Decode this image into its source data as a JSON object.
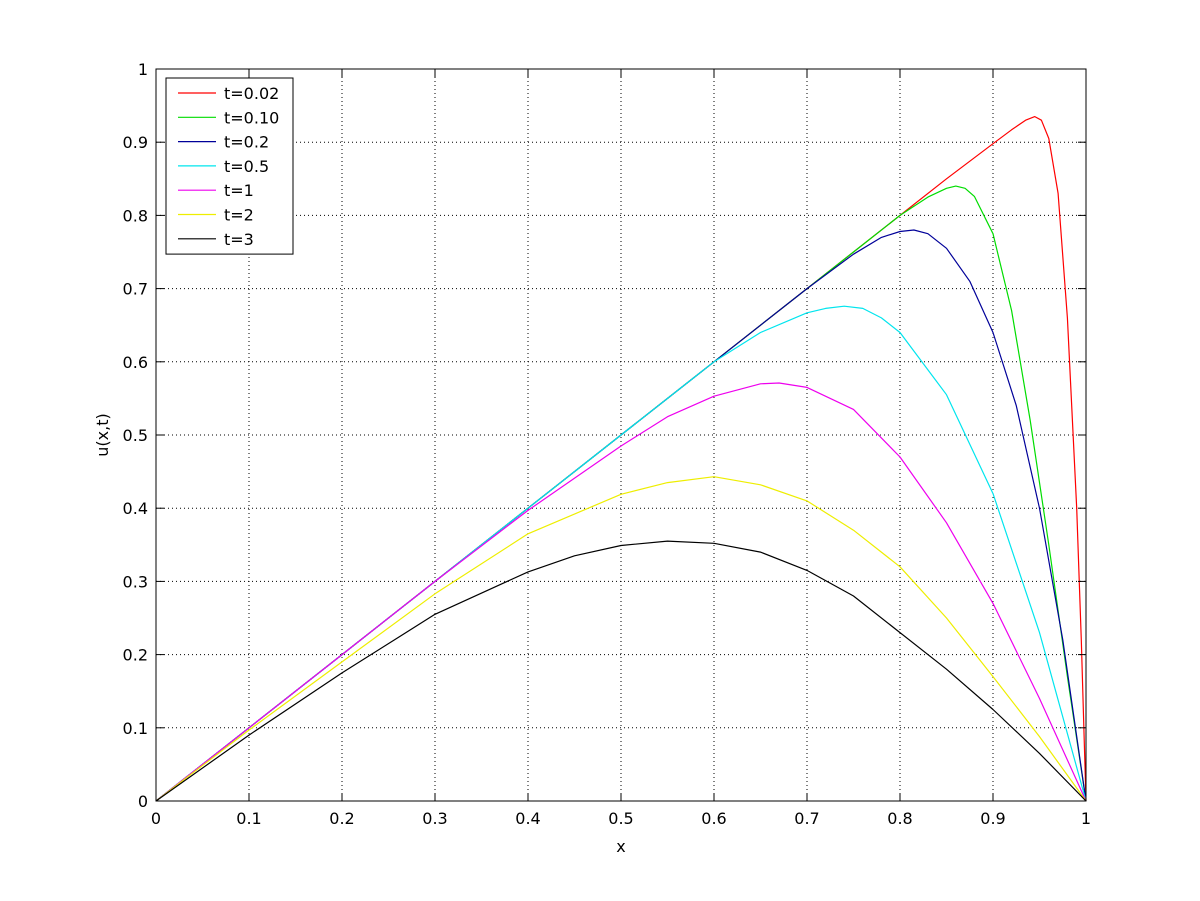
{
  "chart_data": {
    "type": "line",
    "title": "",
    "xlabel": "x",
    "ylabel": "u(x,t)",
    "xlim": [
      0,
      1
    ],
    "ylim": [
      0,
      1
    ],
    "grid": true,
    "legend_position": "top-left",
    "x_ticks": [
      "0",
      "0.1",
      "0.2",
      "0.3",
      "0.4",
      "0.5",
      "0.6",
      "0.7",
      "0.8",
      "0.9",
      "1"
    ],
    "y_ticks": [
      "0",
      "0.1",
      "0.2",
      "0.3",
      "0.4",
      "0.5",
      "0.6",
      "0.7",
      "0.8",
      "0.9",
      "1"
    ],
    "series": [
      {
        "name": "t=0.02",
        "color": "#ff0000",
        "x": [
          0,
          0.1,
          0.2,
          0.3,
          0.4,
          0.5,
          0.6,
          0.7,
          0.8,
          0.85,
          0.9,
          0.92,
          0.935,
          0.945,
          0.952,
          0.96,
          0.97,
          0.98,
          0.99,
          0.995,
          1.0
        ],
        "y": [
          0,
          0.1,
          0.2,
          0.3,
          0.4,
          0.5,
          0.6,
          0.7,
          0.8,
          0.85,
          0.898,
          0.917,
          0.93,
          0.935,
          0.93,
          0.905,
          0.83,
          0.66,
          0.4,
          0.22,
          0
        ]
      },
      {
        "name": "t=0.10",
        "color": "#00dd00",
        "x": [
          0,
          0.1,
          0.2,
          0.3,
          0.4,
          0.5,
          0.6,
          0.7,
          0.75,
          0.8,
          0.83,
          0.85,
          0.86,
          0.87,
          0.88,
          0.9,
          0.92,
          0.94,
          0.96,
          0.98,
          1.0
        ],
        "y": [
          0,
          0.1,
          0.2,
          0.3,
          0.4,
          0.5,
          0.6,
          0.7,
          0.75,
          0.8,
          0.825,
          0.837,
          0.84,
          0.837,
          0.826,
          0.775,
          0.67,
          0.52,
          0.35,
          0.17,
          0
        ]
      },
      {
        "name": "t=0.2",
        "color": "#000099",
        "x": [
          0,
          0.1,
          0.2,
          0.3,
          0.4,
          0.5,
          0.6,
          0.7,
          0.75,
          0.78,
          0.8,
          0.815,
          0.83,
          0.85,
          0.875,
          0.9,
          0.925,
          0.95,
          0.975,
          1.0
        ],
        "y": [
          0,
          0.1,
          0.2,
          0.3,
          0.4,
          0.5,
          0.6,
          0.7,
          0.747,
          0.77,
          0.778,
          0.78,
          0.775,
          0.755,
          0.71,
          0.64,
          0.54,
          0.4,
          0.22,
          0
        ]
      },
      {
        "name": "t=0.5",
        "color": "#00e5ee",
        "x": [
          0,
          0.1,
          0.2,
          0.3,
          0.4,
          0.5,
          0.6,
          0.65,
          0.7,
          0.72,
          0.74,
          0.76,
          0.78,
          0.8,
          0.85,
          0.9,
          0.95,
          1.0
        ],
        "y": [
          0,
          0.1,
          0.2,
          0.3,
          0.4,
          0.5,
          0.6,
          0.64,
          0.667,
          0.673,
          0.676,
          0.673,
          0.66,
          0.64,
          0.555,
          0.42,
          0.23,
          0
        ]
      },
      {
        "name": "t=1",
        "color": "#ee00ee",
        "x": [
          0,
          0.1,
          0.2,
          0.3,
          0.4,
          0.5,
          0.55,
          0.6,
          0.65,
          0.67,
          0.7,
          0.75,
          0.8,
          0.85,
          0.9,
          0.95,
          1.0
        ],
        "y": [
          0,
          0.1,
          0.2,
          0.3,
          0.397,
          0.485,
          0.525,
          0.553,
          0.57,
          0.571,
          0.565,
          0.535,
          0.47,
          0.38,
          0.27,
          0.14,
          0
        ]
      },
      {
        "name": "t=2",
        "color": "#eeee00",
        "x": [
          0,
          0.1,
          0.2,
          0.3,
          0.4,
          0.5,
          0.55,
          0.6,
          0.65,
          0.7,
          0.75,
          0.8,
          0.85,
          0.9,
          0.95,
          1.0
        ],
        "y": [
          0,
          0.097,
          0.19,
          0.283,
          0.365,
          0.419,
          0.435,
          0.443,
          0.432,
          0.41,
          0.37,
          0.32,
          0.25,
          0.17,
          0.088,
          0
        ]
      },
      {
        "name": "t=3",
        "color": "#000000",
        "x": [
          0,
          0.1,
          0.2,
          0.3,
          0.4,
          0.45,
          0.5,
          0.55,
          0.6,
          0.65,
          0.7,
          0.75,
          0.8,
          0.85,
          0.9,
          0.95,
          1.0
        ],
        "y": [
          0,
          0.09,
          0.175,
          0.255,
          0.313,
          0.335,
          0.349,
          0.355,
          0.352,
          0.34,
          0.315,
          0.28,
          0.23,
          0.18,
          0.125,
          0.065,
          0
        ]
      }
    ]
  }
}
